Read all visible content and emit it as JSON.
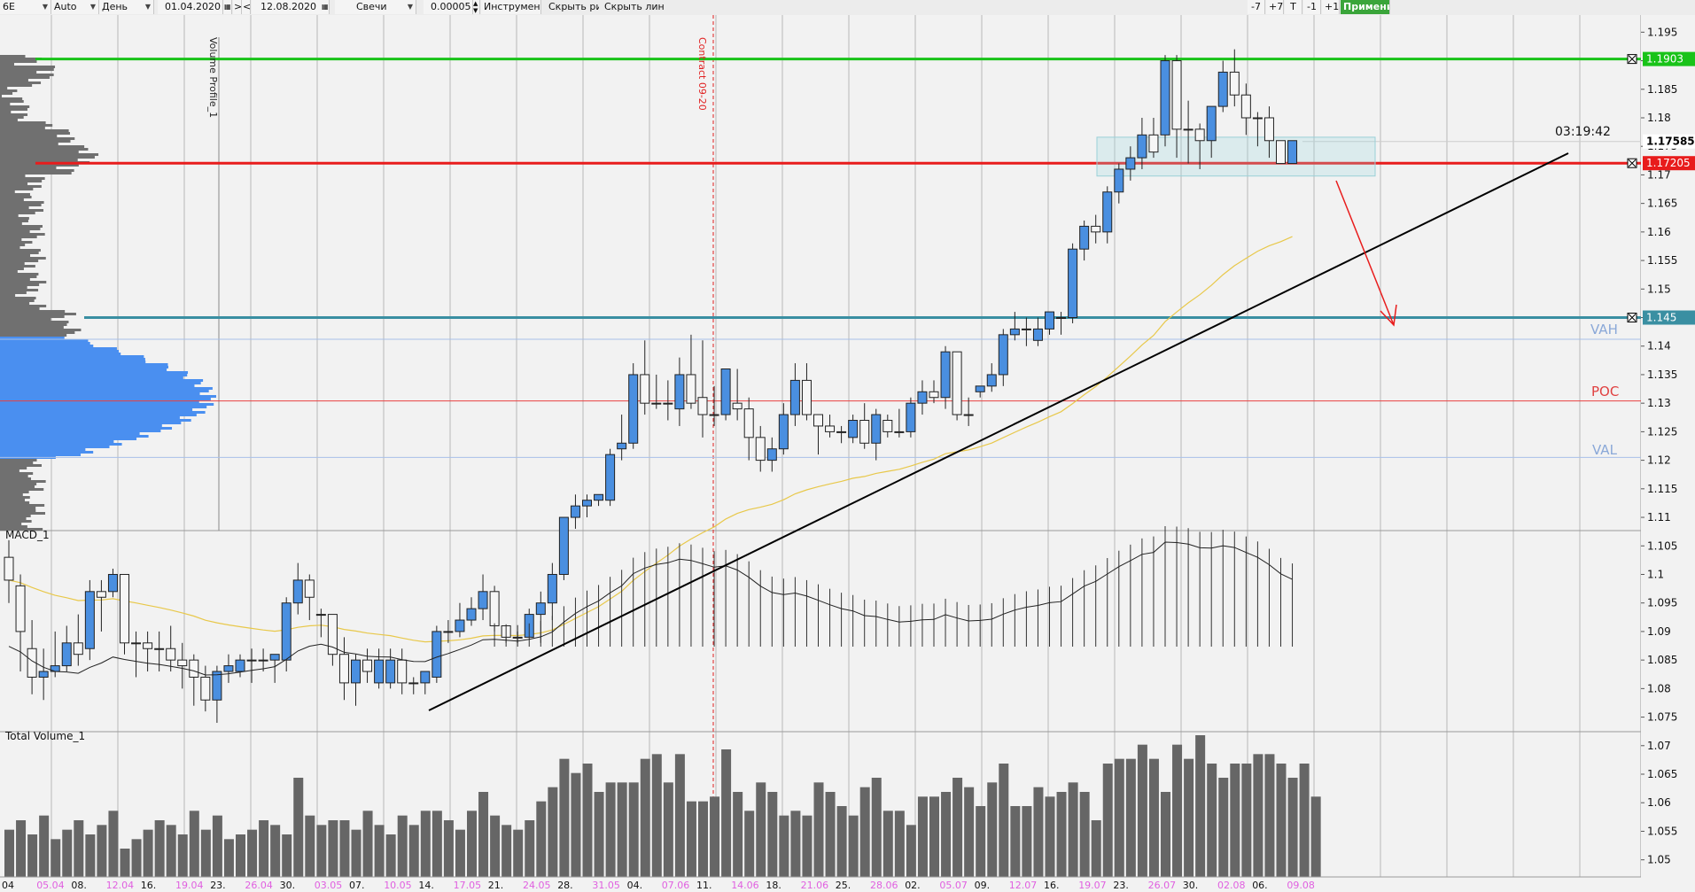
{
  "toolbar": {
    "instrument": "6E",
    "mode": "Auto",
    "timeframe": "День",
    "date_from": "01.04.2020",
    "nav_next": ">",
    "nav_prev": "<",
    "date_to": "12.08.2020",
    "chart_type": "Свечи",
    "tick": "0.00005",
    "instruments": "Инструменты",
    "hide_drawings": "Скрыть рис.",
    "hide_lines": "Скрыть линии",
    "btn_m7": "-7",
    "btn_p7": "+7",
    "btn_t": "T",
    "btn_m1": "-1",
    "btn_p1": "+1",
    "apply": "Применить"
  },
  "colors": {
    "bull": "#4a8fe0",
    "bear": "#f6f6f6",
    "green": "#19c319",
    "red": "#e81c1c",
    "teal": "#3a8fa2",
    "ma": "#e8c84a",
    "volume": "#666666",
    "profile": "#707070",
    "profile_va": "#4a8ff0"
  },
  "labels": {
    "volume_profile": "Volume Profile_1",
    "contract": "Contract 09-20",
    "macd": "MACD_1",
    "total_volume": "Total Volume_1",
    "timer": "03:19:42",
    "vah": "VAH",
    "poc": "POC",
    "val": "VAL"
  },
  "price_axis": {
    "ticks": [
      "1.195",
      "1.19",
      "1.185",
      "1.18",
      "1.175",
      "1.17",
      "1.165",
      "1.16",
      "1.155",
      "1.15",
      "1.145",
      "1.14",
      "1.135",
      "1.13",
      "1.125",
      "1.12",
      "1.115",
      "1.11",
      "1.105",
      "1.1",
      "1.095",
      "1.09",
      "1.085",
      "1.08",
      "1.075",
      "1.07",
      "1.065",
      "1.06",
      "1.055",
      "1.05"
    ]
  },
  "level_tags": [
    {
      "text": "1.1903",
      "color": "#19c319",
      "price": 1.1903
    },
    {
      "text": "1.17585",
      "color": "#ffffff",
      "price": 1.17585
    },
    {
      "text": "1.17205",
      "color": "#e81c1c",
      "price": 1.17205
    },
    {
      "text": "1.145",
      "color": "#3a8fa2",
      "price": 1.145
    }
  ],
  "date_labels": [
    {
      "text": "04",
      "hl": false
    },
    {
      "text": "05.04",
      "hl": true
    },
    {
      "text": "08.",
      "hl": false
    },
    {
      "text": "12.04",
      "hl": true
    },
    {
      "text": "16.",
      "hl": false
    },
    {
      "text": "19.04",
      "hl": true
    },
    {
      "text": "23.",
      "hl": false
    },
    {
      "text": "26.04",
      "hl": true
    },
    {
      "text": "30.",
      "hl": false
    },
    {
      "text": "03.05",
      "hl": true
    },
    {
      "text": "07.",
      "hl": false
    },
    {
      "text": "10.05",
      "hl": true
    },
    {
      "text": "14.",
      "hl": false
    },
    {
      "text": "17.05",
      "hl": true
    },
    {
      "text": "21.",
      "hl": false
    },
    {
      "text": "24.05",
      "hl": true
    },
    {
      "text": "28.",
      "hl": false
    },
    {
      "text": "31.05",
      "hl": true
    },
    {
      "text": "04.",
      "hl": false
    },
    {
      "text": "07.06",
      "hl": true
    },
    {
      "text": "11.",
      "hl": false
    },
    {
      "text": "14.06",
      "hl": true
    },
    {
      "text": "18.",
      "hl": false
    },
    {
      "text": "21.06",
      "hl": true
    },
    {
      "text": "25.",
      "hl": false
    },
    {
      "text": "28.06",
      "hl": true
    },
    {
      "text": "02.",
      "hl": false
    },
    {
      "text": "05.07",
      "hl": true
    },
    {
      "text": "09.",
      "hl": false
    },
    {
      "text": "12.07",
      "hl": true
    },
    {
      "text": "16.",
      "hl": false
    },
    {
      "text": "19.07",
      "hl": true
    },
    {
      "text": "23.",
      "hl": false
    },
    {
      "text": "26.07",
      "hl": true
    },
    {
      "text": "30.",
      "hl": false
    },
    {
      "text": "02.08",
      "hl": true
    },
    {
      "text": "06.",
      "hl": false
    },
    {
      "text": "09.08",
      "hl": true
    }
  ],
  "chart_data": {
    "type": "candlestick",
    "instrument": "6E",
    "timeframe": "День",
    "ylim": [
      1.047,
      1.198
    ],
    "date_range": [
      "01.04.2020",
      "12.08.2020"
    ],
    "candles": [
      {
        "o": 1.103,
        "h": 1.106,
        "l": 1.095,
        "c": 1.099
      },
      {
        "o": 1.098,
        "h": 1.1,
        "l": 1.083,
        "c": 1.09
      },
      {
        "o": 1.087,
        "h": 1.092,
        "l": 1.079,
        "c": 1.082
      },
      {
        "o": 1.082,
        "h": 1.087,
        "l": 1.078,
        "c": 1.083
      },
      {
        "o": 1.083,
        "h": 1.09,
        "l": 1.082,
        "c": 1.084
      },
      {
        "o": 1.084,
        "h": 1.091,
        "l": 1.083,
        "c": 1.088
      },
      {
        "o": 1.088,
        "h": 1.093,
        "l": 1.084,
        "c": 1.086
      },
      {
        "o": 1.087,
        "h": 1.099,
        "l": 1.085,
        "c": 1.097
      },
      {
        "o": 1.097,
        "h": 1.099,
        "l": 1.09,
        "c": 1.096
      },
      {
        "o": 1.097,
        "h": 1.101,
        "l": 1.096,
        "c": 1.1
      },
      {
        "o": 1.1,
        "h": 1.1,
        "l": 1.086,
        "c": 1.088
      },
      {
        "o": 1.088,
        "h": 1.09,
        "l": 1.082,
        "c": 1.088
      },
      {
        "o": 1.088,
        "h": 1.09,
        "l": 1.083,
        "c": 1.087
      },
      {
        "o": 1.087,
        "h": 1.09,
        "l": 1.083,
        "c": 1.087
      },
      {
        "o": 1.087,
        "h": 1.091,
        "l": 1.083,
        "c": 1.085
      },
      {
        "o": 1.085,
        "h": 1.088,
        "l": 1.08,
        "c": 1.084
      },
      {
        "o": 1.085,
        "h": 1.086,
        "l": 1.077,
        "c": 1.082
      },
      {
        "o": 1.082,
        "h": 1.084,
        "l": 1.076,
        "c": 1.078
      },
      {
        "o": 1.078,
        "h": 1.084,
        "l": 1.074,
        "c": 1.083
      },
      {
        "o": 1.083,
        "h": 1.086,
        "l": 1.081,
        "c": 1.084
      },
      {
        "o": 1.083,
        "h": 1.086,
        "l": 1.082,
        "c": 1.085
      },
      {
        "o": 1.085,
        "h": 1.087,
        "l": 1.081,
        "c": 1.085
      },
      {
        "o": 1.085,
        "h": 1.087,
        "l": 1.083,
        "c": 1.085
      },
      {
        "o": 1.085,
        "h": 1.086,
        "l": 1.081,
        "c": 1.086
      },
      {
        "o": 1.085,
        "h": 1.096,
        "l": 1.083,
        "c": 1.095
      },
      {
        "o": 1.095,
        "h": 1.102,
        "l": 1.093,
        "c": 1.099
      },
      {
        "o": 1.099,
        "h": 1.1,
        "l": 1.092,
        "c": 1.096
      },
      {
        "o": 1.093,
        "h": 1.094,
        "l": 1.089,
        "c": 1.093
      },
      {
        "o": 1.093,
        "h": 1.093,
        "l": 1.084,
        "c": 1.086
      },
      {
        "o": 1.086,
        "h": 1.089,
        "l": 1.078,
        "c": 1.081
      },
      {
        "o": 1.081,
        "h": 1.086,
        "l": 1.077,
        "c": 1.085
      },
      {
        "o": 1.085,
        "h": 1.087,
        "l": 1.081,
        "c": 1.083
      },
      {
        "o": 1.081,
        "h": 1.087,
        "l": 1.08,
        "c": 1.085
      },
      {
        "o": 1.081,
        "h": 1.087,
        "l": 1.08,
        "c": 1.085
      },
      {
        "o": 1.085,
        "h": 1.087,
        "l": 1.079,
        "c": 1.081
      },
      {
        "o": 1.081,
        "h": 1.082,
        "l": 1.079,
        "c": 1.081
      },
      {
        "o": 1.081,
        "h": 1.083,
        "l": 1.079,
        "c": 1.083
      },
      {
        "o": 1.082,
        "h": 1.091,
        "l": 1.081,
        "c": 1.09
      },
      {
        "o": 1.09,
        "h": 1.092,
        "l": 1.088,
        "c": 1.09
      },
      {
        "o": 1.09,
        "h": 1.095,
        "l": 1.089,
        "c": 1.092
      },
      {
        "o": 1.092,
        "h": 1.096,
        "l": 1.091,
        "c": 1.094
      },
      {
        "o": 1.094,
        "h": 1.1,
        "l": 1.092,
        "c": 1.097
      },
      {
        "o": 1.097,
        "h": 1.098,
        "l": 1.09,
        "c": 1.091
      },
      {
        "o": 1.091,
        "h": 1.091,
        "l": 1.088,
        "c": 1.089
      },
      {
        "o": 1.089,
        "h": 1.09,
        "l": 1.088,
        "c": 1.089
      },
      {
        "o": 1.089,
        "h": 1.094,
        "l": 1.089,
        "c": 1.093
      },
      {
        "o": 1.093,
        "h": 1.097,
        "l": 1.088,
        "c": 1.095
      },
      {
        "o": 1.095,
        "h": 1.102,
        "l": 1.092,
        "c": 1.1
      },
      {
        "o": 1.1,
        "h": 1.11,
        "l": 1.099,
        "c": 1.11
      },
      {
        "o": 1.11,
        "h": 1.114,
        "l": 1.108,
        "c": 1.112
      },
      {
        "o": 1.112,
        "h": 1.114,
        "l": 1.11,
        "c": 1.113
      },
      {
        "o": 1.113,
        "h": 1.114,
        "l": 1.112,
        "c": 1.114
      },
      {
        "o": 1.113,
        "h": 1.122,
        "l": 1.112,
        "c": 1.121
      },
      {
        "o": 1.122,
        "h": 1.128,
        "l": 1.12,
        "c": 1.123
      },
      {
        "o": 1.123,
        "h": 1.137,
        "l": 1.122,
        "c": 1.135
      },
      {
        "o": 1.135,
        "h": 1.141,
        "l": 1.128,
        "c": 1.13
      },
      {
        "o": 1.13,
        "h": 1.135,
        "l": 1.129,
        "c": 1.13
      },
      {
        "o": 1.13,
        "h": 1.134,
        "l": 1.127,
        "c": 1.13
      },
      {
        "o": 1.129,
        "h": 1.138,
        "l": 1.126,
        "c": 1.135
      },
      {
        "o": 1.135,
        "h": 1.142,
        "l": 1.129,
        "c": 1.13
      },
      {
        "o": 1.131,
        "h": 1.141,
        "l": 1.124,
        "c": 1.128
      },
      {
        "o": 1.128,
        "h": 1.133,
        "l": 1.126,
        "c": 1.128
      },
      {
        "o": 1.128,
        "h": 1.136,
        "l": 1.127,
        "c": 1.136
      },
      {
        "o": 1.13,
        "h": 1.136,
        "l": 1.127,
        "c": 1.129
      },
      {
        "o": 1.129,
        "h": 1.131,
        "l": 1.12,
        "c": 1.124
      },
      {
        "o": 1.124,
        "h": 1.126,
        "l": 1.118,
        "c": 1.12
      },
      {
        "o": 1.12,
        "h": 1.124,
        "l": 1.118,
        "c": 1.122
      },
      {
        "o": 1.122,
        "h": 1.13,
        "l": 1.121,
        "c": 1.128
      },
      {
        "o": 1.128,
        "h": 1.137,
        "l": 1.126,
        "c": 1.134
      },
      {
        "o": 1.134,
        "h": 1.137,
        "l": 1.127,
        "c": 1.128
      },
      {
        "o": 1.128,
        "h": 1.128,
        "l": 1.121,
        "c": 1.126
      },
      {
        "o": 1.126,
        "h": 1.128,
        "l": 1.124,
        "c": 1.125
      },
      {
        "o": 1.125,
        "h": 1.126,
        "l": 1.123,
        "c": 1.125
      },
      {
        "o": 1.124,
        "h": 1.128,
        "l": 1.123,
        "c": 1.127
      },
      {
        "o": 1.127,
        "h": 1.13,
        "l": 1.122,
        "c": 1.123
      },
      {
        "o": 1.123,
        "h": 1.129,
        "l": 1.12,
        "c": 1.128
      },
      {
        "o": 1.127,
        "h": 1.128,
        "l": 1.124,
        "c": 1.125
      },
      {
        "o": 1.125,
        "h": 1.129,
        "l": 1.124,
        "c": 1.125
      },
      {
        "o": 1.125,
        "h": 1.131,
        "l": 1.124,
        "c": 1.13
      },
      {
        "o": 1.13,
        "h": 1.134,
        "l": 1.128,
        "c": 1.132
      },
      {
        "o": 1.132,
        "h": 1.134,
        "l": 1.13,
        "c": 1.131
      },
      {
        "o": 1.131,
        "h": 1.14,
        "l": 1.129,
        "c": 1.139
      },
      {
        "o": 1.139,
        "h": 1.139,
        "l": 1.127,
        "c": 1.128
      },
      {
        "o": 1.128,
        "h": 1.131,
        "l": 1.126,
        "c": 1.128
      },
      {
        "o": 1.132,
        "h": 1.133,
        "l": 1.131,
        "c": 1.133
      },
      {
        "o": 1.133,
        "h": 1.137,
        "l": 1.132,
        "c": 1.135
      },
      {
        "o": 1.135,
        "h": 1.143,
        "l": 1.133,
        "c": 1.142
      },
      {
        "o": 1.142,
        "h": 1.146,
        "l": 1.141,
        "c": 1.143
      },
      {
        "o": 1.143,
        "h": 1.145,
        "l": 1.14,
        "c": 1.143
      },
      {
        "o": 1.141,
        "h": 1.145,
        "l": 1.14,
        "c": 1.143
      },
      {
        "o": 1.143,
        "h": 1.146,
        "l": 1.142,
        "c": 1.146
      },
      {
        "o": 1.145,
        "h": 1.146,
        "l": 1.142,
        "c": 1.145
      },
      {
        "o": 1.145,
        "h": 1.158,
        "l": 1.144,
        "c": 1.157
      },
      {
        "o": 1.157,
        "h": 1.162,
        "l": 1.155,
        "c": 1.161
      },
      {
        "o": 1.161,
        "h": 1.163,
        "l": 1.158,
        "c": 1.16
      },
      {
        "o": 1.16,
        "h": 1.168,
        "l": 1.158,
        "c": 1.167
      },
      {
        "o": 1.167,
        "h": 1.172,
        "l": 1.165,
        "c": 1.171
      },
      {
        "o": 1.171,
        "h": 1.175,
        "l": 1.169,
        "c": 1.173
      },
      {
        "o": 1.173,
        "h": 1.18,
        "l": 1.171,
        "c": 1.177
      },
      {
        "o": 1.177,
        "h": 1.18,
        "l": 1.173,
        "c": 1.174
      },
      {
        "o": 1.177,
        "h": 1.191,
        "l": 1.175,
        "c": 1.19
      },
      {
        "o": 1.19,
        "h": 1.191,
        "l": 1.173,
        "c": 1.178
      },
      {
        "o": 1.178,
        "h": 1.183,
        "l": 1.172,
        "c": 1.178
      },
      {
        "o": 1.178,
        "h": 1.179,
        "l": 1.171,
        "c": 1.176
      },
      {
        "o": 1.176,
        "h": 1.182,
        "l": 1.173,
        "c": 1.182
      },
      {
        "o": 1.182,
        "h": 1.19,
        "l": 1.181,
        "c": 1.188
      },
      {
        "o": 1.188,
        "h": 1.192,
        "l": 1.182,
        "c": 1.184
      },
      {
        "o": 1.184,
        "h": 1.186,
        "l": 1.177,
        "c": 1.18
      },
      {
        "o": 1.18,
        "h": 1.181,
        "l": 1.175,
        "c": 1.18
      },
      {
        "o": 1.18,
        "h": 1.182,
        "l": 1.173,
        "c": 1.176
      },
      {
        "o": 1.176,
        "h": 1.176,
        "l": 1.172,
        "c": 1.172
      },
      {
        "o": 1.172,
        "h": 1.176,
        "l": 1.172,
        "c": 1.176
      }
    ],
    "volume": [
      10,
      12,
      9,
      13,
      8,
      10,
      12,
      9,
      11,
      14,
      6,
      8,
      10,
      12,
      11,
      9,
      14,
      10,
      13,
      8,
      9,
      10,
      12,
      11,
      9,
      21,
      13,
      11,
      12,
      12,
      10,
      14,
      11,
      9,
      13,
      11,
      14,
      14,
      12,
      10,
      14,
      18,
      13,
      11,
      10,
      12,
      16,
      19,
      25,
      22,
      24,
      18,
      20,
      20,
      20,
      25,
      26,
      20,
      26,
      16,
      16,
      17,
      27,
      18,
      14,
      20,
      18,
      13,
      14,
      13,
      20,
      18,
      15,
      13,
      19,
      21,
      14,
      14,
      11,
      17,
      17,
      18,
      21,
      19,
      15,
      20,
      24,
      15,
      15,
      19,
      17,
      18,
      20,
      18,
      12,
      24,
      25,
      25,
      28,
      25,
      18,
      28,
      25,
      30,
      24,
      21,
      24,
      24,
      26,
      26,
      24,
      21,
      24,
      17
    ]
  }
}
